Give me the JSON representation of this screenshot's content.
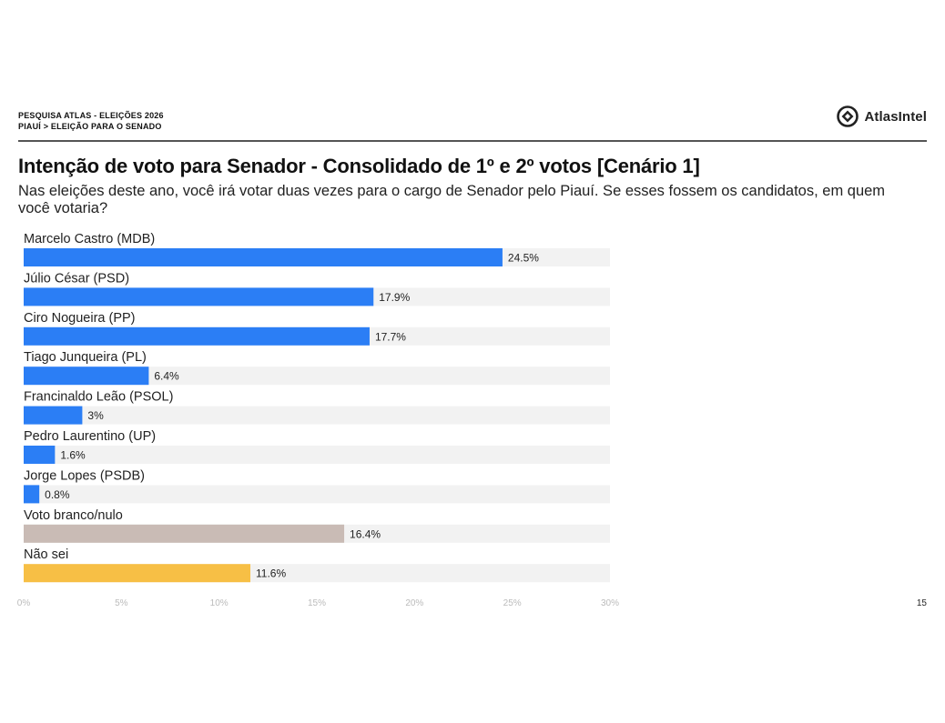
{
  "header": {
    "line1": "PESQUISA ATLAS - ELEIÇÕES 2026",
    "line2": "PIAUÍ > ELEIÇÃO PARA O SENADO",
    "logo_text": "AtlasIntel"
  },
  "title": "Intenção de voto para Senador - Consolidado de 1º e 2º votos [Cenário 1]",
  "subtitle": "Nas eleições deste ano, você irá votar duas vezes para o cargo de Senador pelo Piauí. Se esses fossem os candidatos, em quem você votaria?",
  "page_number": "15",
  "colors": {
    "blue": "#2b7ef5",
    "taupe": "#c9bbb5",
    "yellow": "#f7bf45",
    "track": "#f2f2f2",
    "rule": "#555555"
  },
  "chart_data": {
    "type": "bar",
    "orientation": "horizontal",
    "categories": [
      "Marcelo Castro (MDB)",
      "Júlio César (PSD)",
      "Ciro Nogueira (PP)",
      "Tiago Junqueira (PL)",
      "Francinaldo Leão (PSOL)",
      "Pedro Laurentino (UP)",
      "Jorge Lopes (PSDB)",
      "Voto branco/nulo",
      "Não sei"
    ],
    "values": [
      24.5,
      17.9,
      17.7,
      6.4,
      3,
      1.6,
      0.8,
      16.4,
      11.6
    ],
    "value_labels": [
      "24.5%",
      "17.9%",
      "17.7%",
      "6.4%",
      "3%",
      "1.6%",
      "0.8%",
      "16.4%",
      "11.6%"
    ],
    "bar_colors": [
      "#2b7ef5",
      "#2b7ef5",
      "#2b7ef5",
      "#2b7ef5",
      "#2b7ef5",
      "#2b7ef5",
      "#2b7ef5",
      "#c9bbb5",
      "#f7bf45"
    ],
    "xlim": [
      0,
      30
    ],
    "xticks": [
      "0%",
      "5%",
      "10%",
      "15%",
      "20%",
      "25%",
      "30%"
    ],
    "grid": false,
    "legend": "none"
  }
}
